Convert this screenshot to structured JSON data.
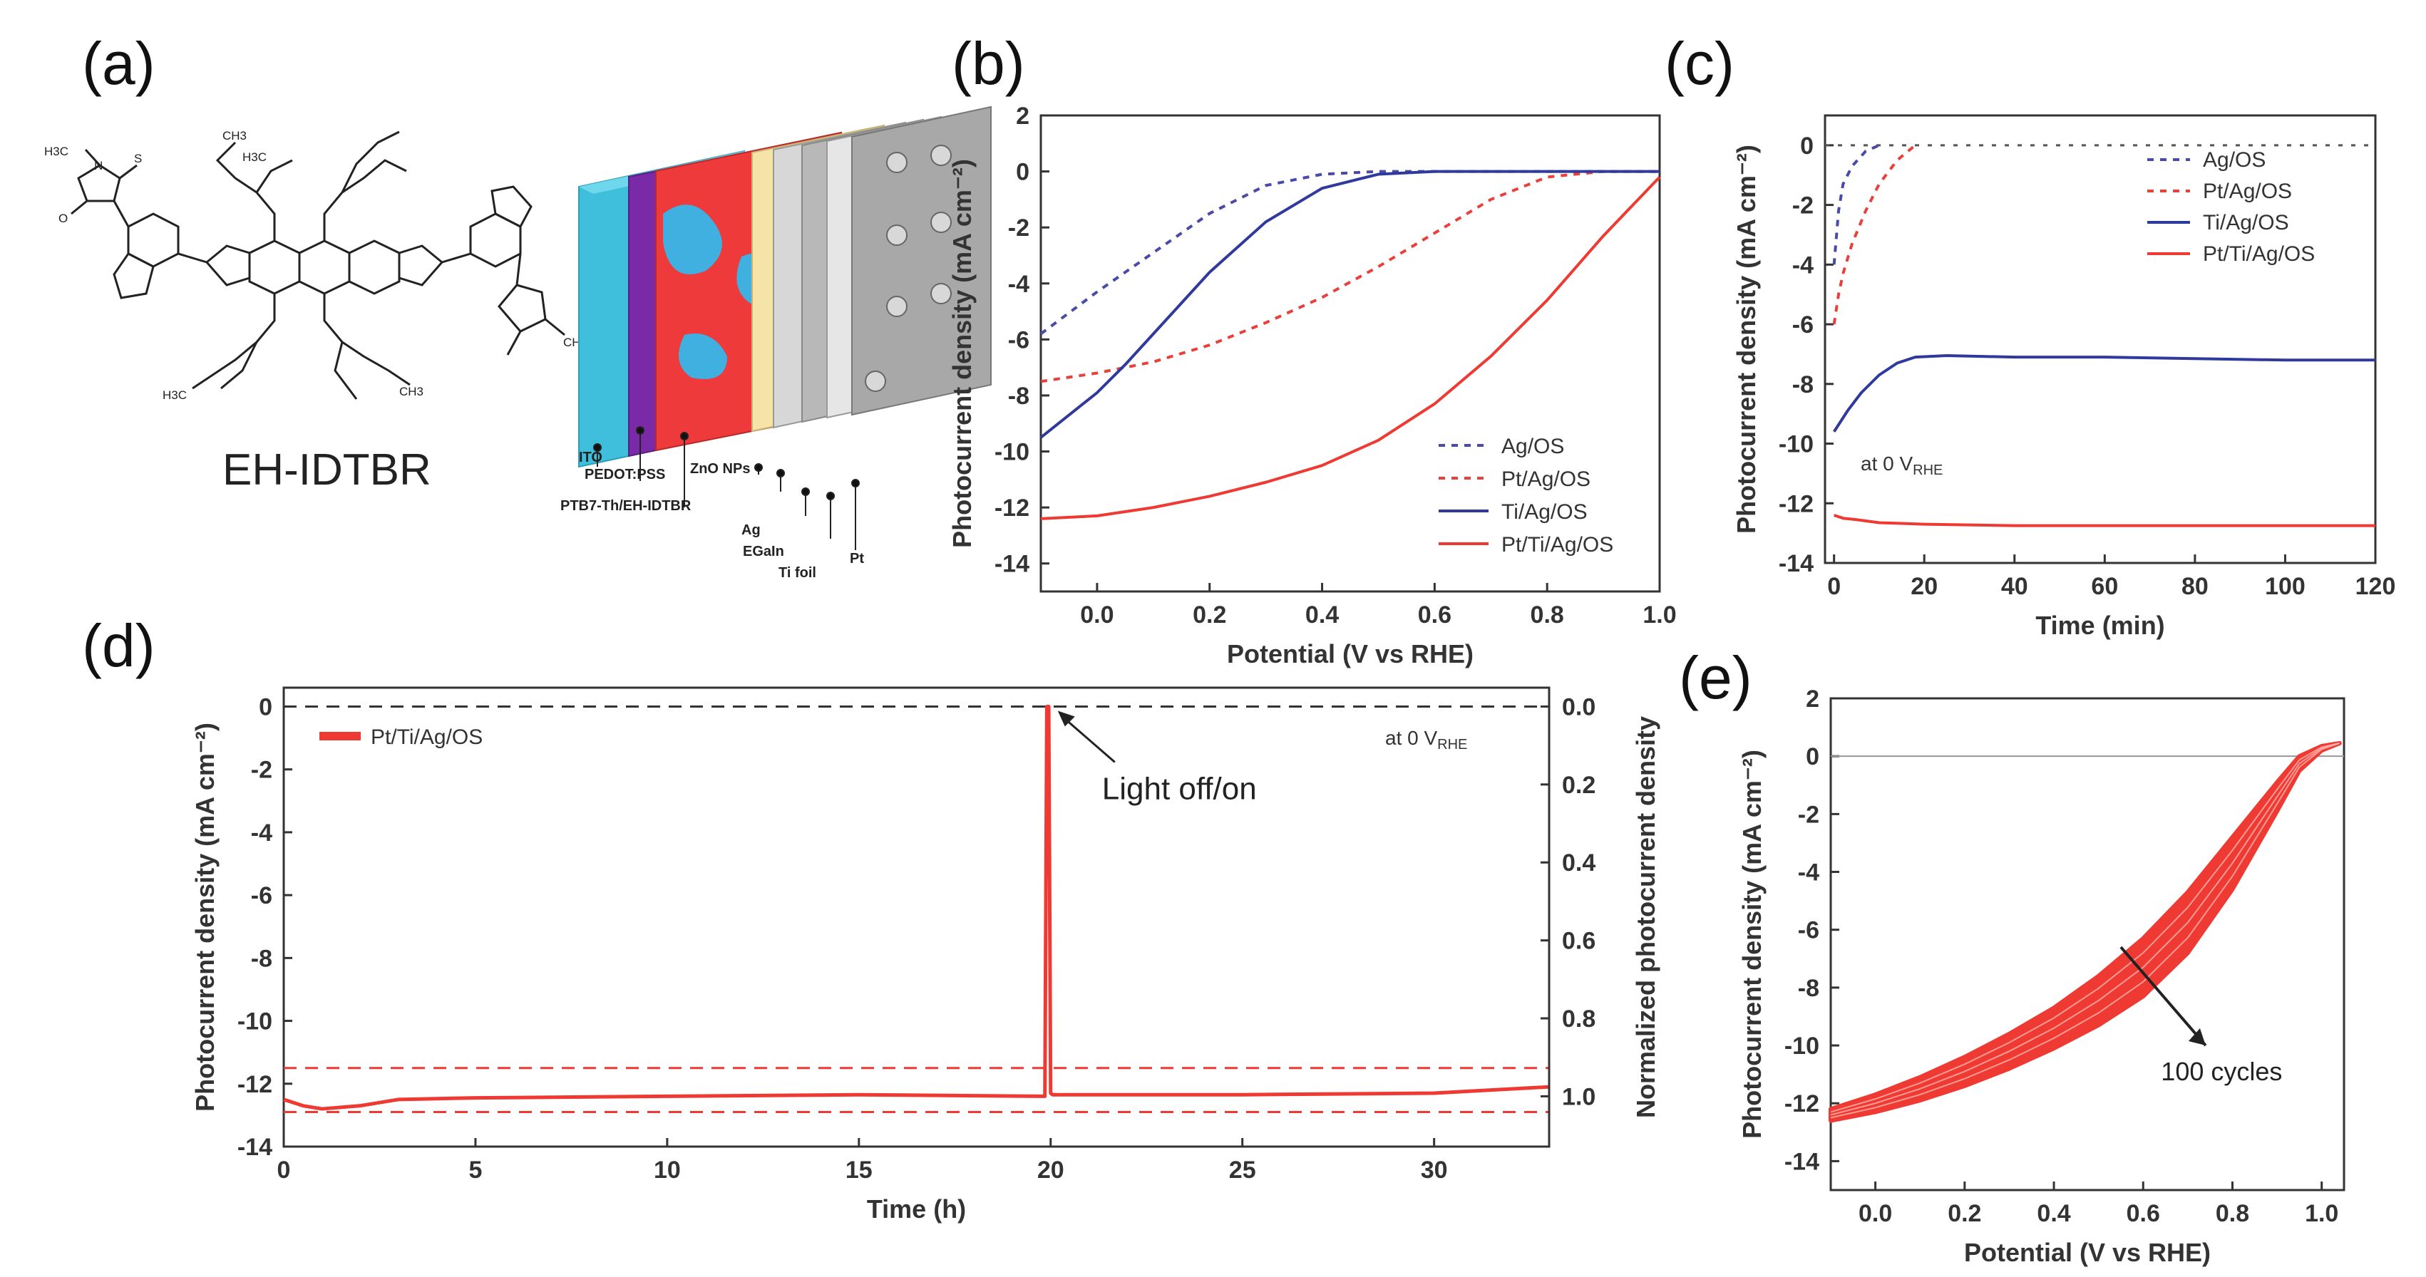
{
  "panels": {
    "a": {
      "label": "(a)",
      "molecule_name": "EH-IDTBR",
      "layers": [
        "ITO",
        "PEDOT:PSS",
        "PTB7-Th/EH-IDTBR",
        "ZnO NPs",
        "Ag",
        "EGaIn",
        "Ti foil",
        "Pt"
      ],
      "chem_labels": [
        "H3C",
        "N",
        "S",
        "O",
        "CH3",
        "H3C",
        "H3C",
        "CH3",
        "CH3"
      ]
    }
  },
  "chart_data": [
    {
      "id": "b",
      "panel_label": "(b)",
      "type": "line",
      "xlabel": "Potential (V vs RHE)",
      "ylabel": "Photocurrent density (mA cm⁻²)",
      "xlim": [
        -0.1,
        1.0
      ],
      "ylim": [
        -15,
        2
      ],
      "xticks": [
        0.0,
        0.2,
        0.4,
        0.6,
        0.8,
        1.0
      ],
      "xtick_labels": [
        "0.0",
        "0.2",
        "0.4",
        "0.6",
        "0.8",
        "1.0"
      ],
      "yticks": [
        2,
        0,
        -2,
        -4,
        -6,
        -8,
        -10,
        -12,
        -14
      ],
      "ytick_labels": [
        "2",
        "0",
        "-2",
        "-4",
        "-6",
        "-8",
        "-10",
        "-12",
        "-14"
      ],
      "legend_position": "bottom-right",
      "series": [
        {
          "name": "Ag/OS",
          "color": "#4a4aa8",
          "dash": "dotted",
          "x": [
            -0.1,
            0.0,
            0.1,
            0.2,
            0.3,
            0.4,
            0.5,
            0.6,
            0.8,
            1.0
          ],
          "y": [
            -5.8,
            -4.3,
            -2.9,
            -1.5,
            -0.5,
            -0.1,
            0,
            0,
            0,
            0
          ]
        },
        {
          "name": "Pt/Ag/OS",
          "color": "#e8413c",
          "dash": "dotted",
          "x": [
            -0.1,
            0.0,
            0.1,
            0.2,
            0.3,
            0.4,
            0.5,
            0.6,
            0.7,
            0.8,
            0.9,
            1.0
          ],
          "y": [
            -7.5,
            -7.2,
            -6.8,
            -6.2,
            -5.4,
            -4.5,
            -3.4,
            -2.2,
            -1.0,
            -0.2,
            0,
            0
          ]
        },
        {
          "name": "Ti/Ag/OS",
          "color": "#2f3a9c",
          "dash": "solid",
          "x": [
            -0.1,
            0.0,
            0.05,
            0.1,
            0.2,
            0.3,
            0.4,
            0.5,
            0.6,
            0.8,
            1.0
          ],
          "y": [
            -9.5,
            -7.9,
            -6.9,
            -5.8,
            -3.6,
            -1.8,
            -0.6,
            -0.1,
            0,
            0,
            0
          ]
        },
        {
          "name": "Pt/Ti/Ag/OS",
          "color": "#ee3a32",
          "dash": "solid",
          "x": [
            -0.1,
            0.0,
            0.1,
            0.2,
            0.3,
            0.4,
            0.5,
            0.6,
            0.7,
            0.8,
            0.9,
            1.0
          ],
          "y": [
            -12.4,
            -12.3,
            -12.0,
            -11.6,
            -11.1,
            -10.5,
            -9.6,
            -8.3,
            -6.6,
            -4.6,
            -2.3,
            -0.2
          ]
        }
      ]
    },
    {
      "id": "c",
      "panel_label": "(c)",
      "type": "line",
      "xlabel": "Time (min)",
      "ylabel": "Photocurrent density (mA cm⁻²)",
      "xlim": [
        -2,
        120
      ],
      "ylim": [
        -14,
        1
      ],
      "xticks": [
        0,
        20,
        40,
        60,
        80,
        100,
        120
      ],
      "xtick_labels": [
        "0",
        "20",
        "40",
        "60",
        "80",
        "100",
        "120"
      ],
      "yticks": [
        0,
        -2,
        -4,
        -6,
        -8,
        -10,
        -12,
        -14
      ],
      "ytick_labels": [
        "0",
        "-2",
        "-4",
        "-6",
        "-8",
        "-10",
        "-12",
        "-14"
      ],
      "legend_position": "top-right",
      "annotation": {
        "text": "at 0 V",
        "sub": "RHE"
      },
      "series": [
        {
          "name": "Ag/OS",
          "color": "#4a4aa8",
          "dash": "dotted",
          "x": [
            0,
            1,
            2,
            4,
            7,
            10
          ],
          "y": [
            -4.0,
            -2.2,
            -1.3,
            -0.7,
            -0.2,
            0
          ]
        },
        {
          "name": "Pt/Ag/OS",
          "color": "#e8413c",
          "dash": "dotted",
          "x": [
            0,
            1,
            2,
            4,
            7,
            10,
            14,
            18
          ],
          "y": [
            -6.0,
            -5.0,
            -4.3,
            -3.3,
            -2.2,
            -1.3,
            -0.5,
            0
          ]
        },
        {
          "name": "Ti/Ag/OS",
          "color": "#2f3a9c",
          "dash": "solid",
          "x": [
            0,
            3,
            6,
            10,
            14,
            18,
            25,
            40,
            60,
            80,
            100,
            120
          ],
          "y": [
            -9.6,
            -8.9,
            -8.3,
            -7.7,
            -7.3,
            -7.1,
            -7.05,
            -7.1,
            -7.1,
            -7.15,
            -7.2,
            -7.2
          ]
        },
        {
          "name": "Pt/Ti/Ag/OS",
          "color": "#ee3a32",
          "dash": "solid",
          "x": [
            0,
            2,
            5,
            10,
            20,
            40,
            60,
            80,
            100,
            120
          ],
          "y": [
            -12.4,
            -12.5,
            -12.55,
            -12.65,
            -12.7,
            -12.75,
            -12.75,
            -12.75,
            -12.75,
            -12.75
          ]
        }
      ]
    },
    {
      "id": "d",
      "panel_label": "(d)",
      "type": "line",
      "xlabel": "Time (h)",
      "ylabel": "Photocurrent density (mA cm⁻²)",
      "ylabel_right": "Normalized photocurrent density",
      "xlim": [
        0,
        33
      ],
      "ylim": [
        -14,
        0.6
      ],
      "xticks": [
        0,
        5,
        10,
        15,
        20,
        25,
        30
      ],
      "xtick_labels": [
        "0",
        "5",
        "10",
        "15",
        "20",
        "25",
        "30"
      ],
      "yticks": [
        0,
        -2,
        -4,
        -6,
        -8,
        -10,
        -12,
        -14
      ],
      "ytick_labels": [
        "0",
        "-2",
        "-4",
        "-6",
        "-8",
        "-10",
        "-12",
        "-14"
      ],
      "yticks_right": [
        0.0,
        0.2,
        0.4,
        0.6,
        0.8,
        1.0
      ],
      "ytick_right_labels": [
        "0.0",
        "0.2",
        "0.4",
        "0.6",
        "0.8",
        "1.0"
      ],
      "legend_position": "top-left",
      "annotation_top_right": {
        "text": "at 0 V",
        "sub": "RHE"
      },
      "arrow_annotation": {
        "text": "Light off/on",
        "x": 20,
        "y": 0
      },
      "reference_lines": [
        {
          "y": 0,
          "style": "dashed",
          "color": "#333333"
        },
        {
          "y": -11.5,
          "style": "dashed",
          "color": "#ee3a32"
        },
        {
          "y": -12.9,
          "style": "dashed",
          "color": "#ee3a32"
        }
      ],
      "series": [
        {
          "name": "Pt/Ti/Ag/OS",
          "color": "#ee3a32",
          "dash": "solid",
          "x": [
            0,
            0.5,
            1,
            2,
            3,
            5,
            10,
            15,
            19.85,
            19.9,
            19.95,
            20.0,
            20.05,
            25,
            30,
            33
          ],
          "y": [
            -12.5,
            -12.7,
            -12.8,
            -12.7,
            -12.5,
            -12.45,
            -12.4,
            -12.35,
            -12.4,
            0,
            0,
            -12.3,
            -12.35,
            -12.35,
            -12.3,
            -12.1
          ]
        }
      ]
    },
    {
      "id": "e",
      "panel_label": "(e)",
      "type": "line",
      "xlabel": "Potential (V vs RHE)",
      "ylabel": "Photocurrent density (mA cm⁻²)",
      "xlim": [
        -0.1,
        1.05
      ],
      "ylim": [
        -15,
        2
      ],
      "xticks": [
        0.0,
        0.2,
        0.4,
        0.6,
        0.8,
        1.0
      ],
      "xtick_labels": [
        "0.0",
        "0.2",
        "0.4",
        "0.6",
        "0.8",
        "1.0"
      ],
      "yticks": [
        2,
        0,
        -2,
        -4,
        -6,
        -8,
        -10,
        -12,
        -14
      ],
      "ytick_labels": [
        "2",
        "0",
        "-2",
        "-4",
        "-6",
        "-8",
        "-10",
        "-12",
        "-14"
      ],
      "annotation": {
        "text": "100 cycles"
      },
      "band_color": "#ee3a32",
      "band_upper": {
        "x": [
          -0.1,
          0.0,
          0.1,
          0.2,
          0.3,
          0.4,
          0.5,
          0.6,
          0.7,
          0.8,
          0.9,
          0.95,
          1.0,
          1.04
        ],
        "y": [
          -12.2,
          -11.7,
          -11.1,
          -10.4,
          -9.6,
          -8.7,
          -7.6,
          -6.3,
          -4.7,
          -2.8,
          -0.9,
          0,
          0.35,
          0.45
        ]
      },
      "band_lower": {
        "x": [
          -0.1,
          0.0,
          0.1,
          0.2,
          0.3,
          0.4,
          0.5,
          0.6,
          0.7,
          0.8,
          0.9,
          0.95,
          1.0,
          1.04
        ],
        "y": [
          -12.6,
          -12.3,
          -11.9,
          -11.4,
          -10.8,
          -10.1,
          -9.3,
          -8.3,
          -6.8,
          -4.6,
          -1.9,
          -0.5,
          0.2,
          0.45
        ]
      }
    }
  ]
}
